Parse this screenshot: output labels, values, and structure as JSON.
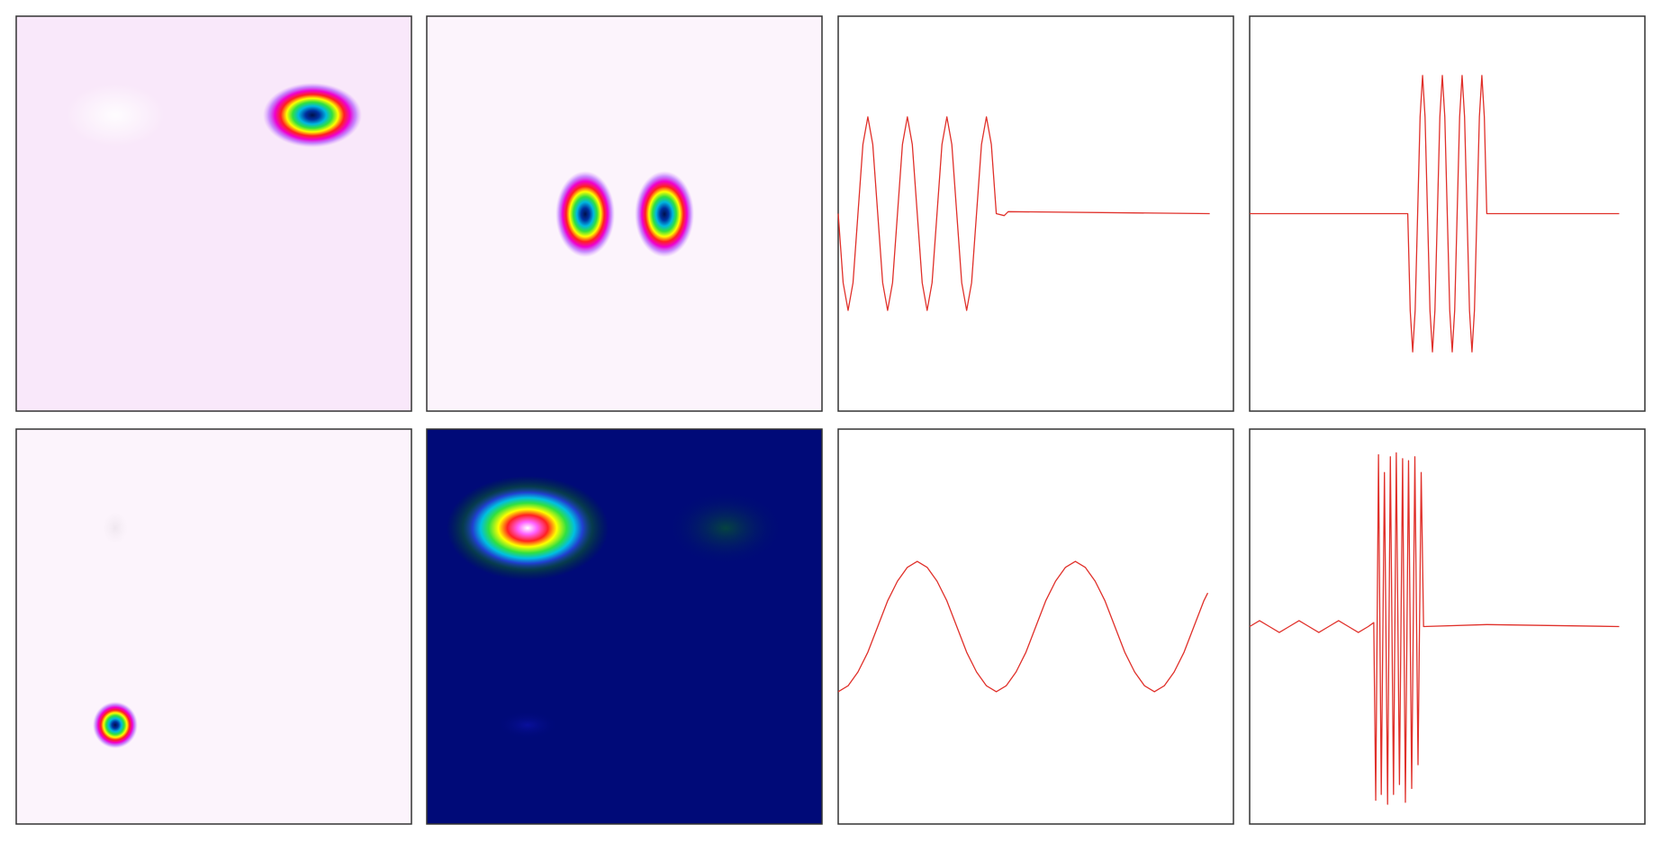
{
  "chart_data": [
    {
      "type": "line",
      "color": "#e0302a",
      "xlim": [
        0,
        1
      ],
      "ylim": [
        -1,
        1
      ],
      "x": [
        0,
        0.0125,
        0.025,
        0.0375,
        0.05,
        0.0625,
        0.075,
        0.0875,
        0.1,
        0.1125,
        0.125,
        0.1375,
        0.15,
        0.1625,
        0.175,
        0.1875,
        0.2,
        0.2125,
        0.225,
        0.2375,
        0.25,
        0.2625,
        0.275,
        0.2875,
        0.3,
        0.3125,
        0.325,
        0.3375,
        0.35,
        0.3625,
        0.375,
        0.3875,
        0.4,
        0.42,
        0.43,
        0.94
      ],
      "values": [
        0,
        -0.35,
        -0.49,
        -0.35,
        0,
        0.35,
        0.49,
        0.35,
        0,
        -0.35,
        -0.49,
        -0.35,
        0,
        0.35,
        0.49,
        0.35,
        0,
        -0.35,
        -0.49,
        -0.35,
        0,
        0.35,
        0.49,
        0.35,
        0,
        -0.35,
        -0.49,
        -0.35,
        0,
        0.35,
        0.49,
        0.35,
        0,
        -0.01,
        0.01,
        0
      ]
    },
    {
      "type": "line",
      "color": "#e0302a",
      "xlim": [
        0,
        1
      ],
      "ylim": [
        -1,
        1
      ],
      "x": [
        0,
        0.4,
        0.40625,
        0.4125,
        0.41875,
        0.425,
        0.43125,
        0.4375,
        0.44375,
        0.45,
        0.45625,
        0.4625,
        0.46875,
        0.475,
        0.48125,
        0.4875,
        0.49375,
        0.5,
        0.50625,
        0.5125,
        0.51875,
        0.525,
        0.53125,
        0.5375,
        0.54375,
        0.55,
        0.55625,
        0.5625,
        0.56875,
        0.575,
        0.58125,
        0.5875,
        0.59375,
        0.6,
        0.935
      ],
      "values": [
        0,
        0,
        -0.49,
        -0.7,
        -0.49,
        0,
        0.49,
        0.7,
        0.49,
        0,
        -0.49,
        -0.7,
        -0.49,
        0,
        0.49,
        0.7,
        0.49,
        0,
        -0.49,
        -0.7,
        -0.49,
        0,
        0.49,
        0.7,
        0.49,
        0,
        -0.49,
        -0.7,
        -0.49,
        0,
        0.49,
        0.7,
        0.49,
        0,
        0
      ]
    },
    {
      "type": "line",
      "color": "#e0302a",
      "xlim": [
        0,
        1
      ],
      "ylim": [
        -1,
        1
      ],
      "x": [
        0,
        0.025,
        0.05,
        0.075,
        0.1,
        0.125,
        0.15,
        0.175,
        0.2,
        0.225,
        0.25,
        0.275,
        0.3,
        0.325,
        0.35,
        0.375,
        0.4,
        0.425,
        0.45,
        0.475,
        0.5,
        0.525,
        0.55,
        0.575,
        0.6,
        0.625,
        0.65,
        0.675,
        0.7,
        0.725,
        0.75,
        0.775,
        0.8,
        0.825,
        0.85,
        0.875,
        0.9,
        0.925,
        0.935
      ],
      "values": [
        -0.33,
        -0.3,
        -0.23,
        -0.13,
        0,
        0.13,
        0.23,
        0.3,
        0.33,
        0.3,
        0.23,
        0.13,
        0,
        -0.13,
        -0.23,
        -0.3,
        -0.33,
        -0.3,
        -0.23,
        -0.13,
        0,
        0.13,
        0.23,
        0.3,
        0.33,
        0.3,
        0.23,
        0.13,
        0,
        -0.13,
        -0.23,
        -0.3,
        -0.33,
        -0.3,
        -0.23,
        -0.13,
        0,
        0.13,
        0.17
      ]
    },
    {
      "type": "line",
      "color": "#e0302a",
      "xlim": [
        0,
        1
      ],
      "ylim": [
        -1,
        1
      ],
      "x": [
        0,
        0.025,
        0.05,
        0.075,
        0.1,
        0.125,
        0.15,
        0.175,
        0.2,
        0.225,
        0.25,
        0.275,
        0.3,
        0.314,
        0.319,
        0.326,
        0.333,
        0.341,
        0.349,
        0.356,
        0.364,
        0.371,
        0.379,
        0.387,
        0.394,
        0.402,
        0.41,
        0.418,
        0.426,
        0.434,
        0.44,
        0.6,
        0.935
      ],
      "values": [
        0,
        0.03,
        0,
        -0.03,
        0,
        0.03,
        0,
        -0.03,
        0,
        0.03,
        0,
        -0.03,
        0,
        0.02,
        -0.88,
        0.87,
        -0.85,
        0.78,
        -0.9,
        0.86,
        -0.85,
        0.88,
        -0.8,
        0.85,
        -0.89,
        0.84,
        -0.82,
        0.86,
        -0.7,
        0.78,
        0,
        0.01,
        0
      ]
    }
  ]
}
